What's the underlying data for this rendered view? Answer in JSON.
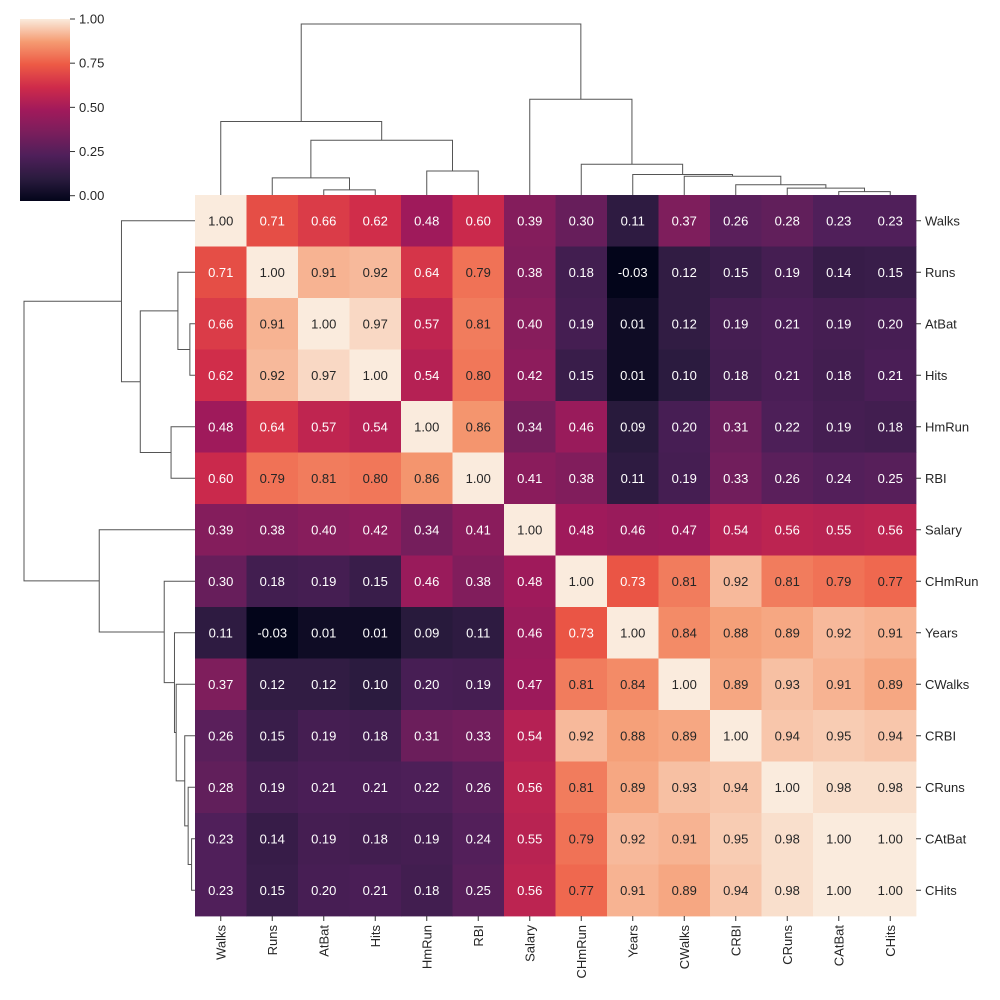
{
  "chart_data": {
    "type": "heatmap",
    "title": "",
    "xlabel": "",
    "ylabel": "",
    "labels": [
      "Walks",
      "Runs",
      "AtBat",
      "Hits",
      "HmRun",
      "RBI",
      "Salary",
      "CHmRun",
      "Years",
      "CWalks",
      "CRBI",
      "CRuns",
      "CAtBat",
      "CHits"
    ],
    "matrix": [
      [
        1.0,
        0.71,
        0.66,
        0.62,
        0.48,
        0.6,
        0.39,
        0.3,
        0.11,
        0.37,
        0.26,
        0.28,
        0.23,
        0.23
      ],
      [
        0.71,
        1.0,
        0.91,
        0.92,
        0.64,
        0.79,
        0.38,
        0.18,
        -0.03,
        0.12,
        0.15,
        0.19,
        0.14,
        0.15
      ],
      [
        0.66,
        0.91,
        1.0,
        0.97,
        0.57,
        0.81,
        0.4,
        0.19,
        0.01,
        0.12,
        0.19,
        0.21,
        0.19,
        0.2
      ],
      [
        0.62,
        0.92,
        0.97,
        1.0,
        0.54,
        0.8,
        0.42,
        0.15,
        0.01,
        0.1,
        0.18,
        0.21,
        0.18,
        0.21
      ],
      [
        0.48,
        0.64,
        0.57,
        0.54,
        1.0,
        0.86,
        0.34,
        0.46,
        0.09,
        0.2,
        0.31,
        0.22,
        0.19,
        0.18
      ],
      [
        0.6,
        0.79,
        0.81,
        0.8,
        0.86,
        1.0,
        0.41,
        0.38,
        0.11,
        0.19,
        0.33,
        0.26,
        0.24,
        0.25
      ],
      [
        0.39,
        0.38,
        0.4,
        0.42,
        0.34,
        0.41,
        1.0,
        0.48,
        0.46,
        0.47,
        0.54,
        0.56,
        0.55,
        0.56
      ],
      [
        0.3,
        0.18,
        0.19,
        0.15,
        0.46,
        0.38,
        0.48,
        1.0,
        0.73,
        0.81,
        0.92,
        0.81,
        0.79,
        0.77
      ],
      [
        0.11,
        -0.03,
        0.01,
        0.01,
        0.09,
        0.11,
        0.46,
        0.73,
        1.0,
        0.84,
        0.88,
        0.89,
        0.92,
        0.91
      ],
      [
        0.37,
        0.12,
        0.12,
        0.1,
        0.2,
        0.19,
        0.47,
        0.81,
        0.84,
        1.0,
        0.89,
        0.93,
        0.91,
        0.89
      ],
      [
        0.26,
        0.15,
        0.19,
        0.18,
        0.31,
        0.33,
        0.54,
        0.92,
        0.88,
        0.89,
        1.0,
        0.94,
        0.95,
        0.94
      ],
      [
        0.28,
        0.19,
        0.21,
        0.21,
        0.22,
        0.26,
        0.56,
        0.81,
        0.89,
        0.93,
        0.94,
        1.0,
        0.98,
        0.98
      ],
      [
        0.23,
        0.14,
        0.19,
        0.18,
        0.19,
        0.24,
        0.55,
        0.79,
        0.92,
        0.91,
        0.95,
        0.98,
        1.0,
        1.0
      ],
      [
        0.23,
        0.15,
        0.2,
        0.21,
        0.18,
        0.25,
        0.56,
        0.77,
        0.91,
        0.89,
        0.94,
        0.98,
        1.0,
        1.0
      ]
    ],
    "colorbar": {
      "vmin": -0.03,
      "vmax": 1.0,
      "ticks": [
        "0.00",
        "0.25",
        "0.50",
        "0.75",
        "1.00"
      ],
      "colormap": "rocket",
      "placement": "top-left"
    },
    "dendrogram": {
      "placement": [
        "top",
        "left"
      ],
      "color": "#555555",
      "leaf_order": [
        "Walks",
        "Runs",
        "AtBat",
        "Hits",
        "HmRun",
        "RBI",
        "Salary",
        "CHmRun",
        "Years",
        "CWalks",
        "CRBI",
        "CRuns",
        "CAtBat",
        "CHits"
      ]
    }
  }
}
